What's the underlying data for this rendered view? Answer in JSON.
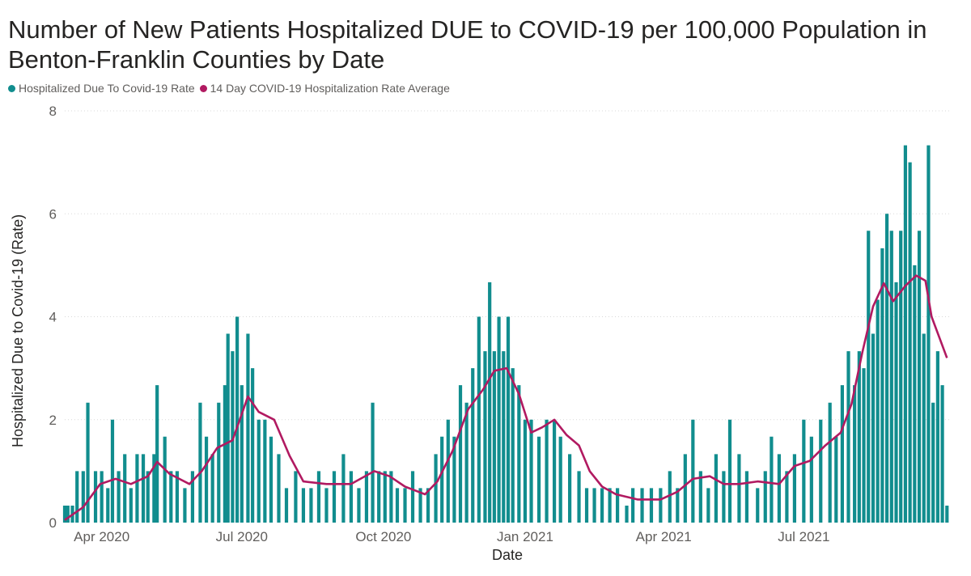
{
  "chart_data": {
    "type": "bar",
    "title": "Number of New Patients Hospitalized DUE to COVID-19 per 100,000 Population in Benton-Franklin Counties by Date",
    "xlabel": "Date",
    "ylabel": "Hospitalized Due to Covid-19 (Rate)",
    "ylim": [
      0,
      8
    ],
    "y_ticks": [
      "0",
      "2",
      "4",
      "6",
      "8"
    ],
    "x_ticks": [
      "Apr 2020",
      "Jul 2020",
      "Oct 2020",
      "Jan 2021",
      "Apr 2021",
      "Jul 2021"
    ],
    "x_tick_dates": [
      "2020-04-01",
      "2020-07-01",
      "2020-10-01",
      "2021-01-01",
      "2021-04-01",
      "2021-07-01"
    ],
    "x_range": [
      "2020-03-08",
      "2021-10-05"
    ],
    "grid": true,
    "legend_position": "top-left",
    "series": [
      {
        "name": "Hospitalized Due To Covid-19 Rate",
        "type": "bar",
        "color": "#118d8e",
        "points": [
          [
            "2020-03-08",
            0.33
          ],
          [
            "2020-03-10",
            0.33
          ],
          [
            "2020-03-13",
            0.33
          ],
          [
            "2020-03-16",
            1.0
          ],
          [
            "2020-03-20",
            1.0
          ],
          [
            "2020-03-23",
            2.33
          ],
          [
            "2020-03-28",
            1.0
          ],
          [
            "2020-04-01",
            1.0
          ],
          [
            "2020-04-05",
            0.67
          ],
          [
            "2020-04-08",
            2.0
          ],
          [
            "2020-04-12",
            1.0
          ],
          [
            "2020-04-16",
            1.33
          ],
          [
            "2020-04-20",
            0.67
          ],
          [
            "2020-04-24",
            1.33
          ],
          [
            "2020-04-28",
            1.33
          ],
          [
            "2020-05-01",
            1.0
          ],
          [
            "2020-05-05",
            1.33
          ],
          [
            "2020-05-07",
            2.67
          ],
          [
            "2020-05-12",
            1.67
          ],
          [
            "2020-05-16",
            1.0
          ],
          [
            "2020-05-20",
            1.0
          ],
          [
            "2020-05-25",
            0.67
          ],
          [
            "2020-05-30",
            1.0
          ],
          [
            "2020-06-04",
            2.33
          ],
          [
            "2020-06-08",
            1.67
          ],
          [
            "2020-06-12",
            1.33
          ],
          [
            "2020-06-16",
            2.33
          ],
          [
            "2020-06-20",
            2.67
          ],
          [
            "2020-06-22",
            3.67
          ],
          [
            "2020-06-25",
            3.33
          ],
          [
            "2020-06-28",
            4.0
          ],
          [
            "2020-07-01",
            2.67
          ],
          [
            "2020-07-05",
            3.67
          ],
          [
            "2020-07-08",
            3.0
          ],
          [
            "2020-07-12",
            2.0
          ],
          [
            "2020-07-16",
            2.0
          ],
          [
            "2020-07-20",
            1.67
          ],
          [
            "2020-07-25",
            1.33
          ],
          [
            "2020-07-30",
            0.67
          ],
          [
            "2020-08-05",
            1.0
          ],
          [
            "2020-08-10",
            0.67
          ],
          [
            "2020-08-15",
            0.67
          ],
          [
            "2020-08-20",
            1.0
          ],
          [
            "2020-08-25",
            0.67
          ],
          [
            "2020-08-30",
            1.0
          ],
          [
            "2020-09-05",
            1.33
          ],
          [
            "2020-09-10",
            1.0
          ],
          [
            "2020-09-15",
            0.67
          ],
          [
            "2020-09-20",
            1.0
          ],
          [
            "2020-09-24",
            2.33
          ],
          [
            "2020-09-28",
            1.0
          ],
          [
            "2020-10-02",
            1.0
          ],
          [
            "2020-10-06",
            1.0
          ],
          [
            "2020-10-10",
            0.67
          ],
          [
            "2020-10-15",
            0.67
          ],
          [
            "2020-10-20",
            1.0
          ],
          [
            "2020-10-25",
            0.67
          ],
          [
            "2020-10-30",
            0.67
          ],
          [
            "2020-11-04",
            1.33
          ],
          [
            "2020-11-08",
            1.67
          ],
          [
            "2020-11-12",
            2.0
          ],
          [
            "2020-11-16",
            1.67
          ],
          [
            "2020-11-20",
            2.67
          ],
          [
            "2020-11-24",
            2.33
          ],
          [
            "2020-11-28",
            3.0
          ],
          [
            "2020-12-02",
            4.0
          ],
          [
            "2020-12-06",
            3.33
          ],
          [
            "2020-12-09",
            4.67
          ],
          [
            "2020-12-12",
            3.33
          ],
          [
            "2020-12-15",
            4.0
          ],
          [
            "2020-12-18",
            3.33
          ],
          [
            "2020-12-21",
            4.0
          ],
          [
            "2020-12-24",
            3.0
          ],
          [
            "2020-12-28",
            2.67
          ],
          [
            "2021-01-01",
            2.0
          ],
          [
            "2021-01-05",
            2.0
          ],
          [
            "2021-01-10",
            1.67
          ],
          [
            "2021-01-15",
            2.0
          ],
          [
            "2021-01-20",
            2.0
          ],
          [
            "2021-01-24",
            1.67
          ],
          [
            "2021-01-30",
            1.33
          ],
          [
            "2021-02-05",
            1.0
          ],
          [
            "2021-02-10",
            0.67
          ],
          [
            "2021-02-15",
            0.67
          ],
          [
            "2021-02-20",
            0.67
          ],
          [
            "2021-02-25",
            0.67
          ],
          [
            "2021-03-02",
            0.67
          ],
          [
            "2021-03-08",
            0.33
          ],
          [
            "2021-03-12",
            0.67
          ],
          [
            "2021-03-18",
            0.67
          ],
          [
            "2021-03-24",
            0.67
          ],
          [
            "2021-03-30",
            0.67
          ],
          [
            "2021-04-05",
            1.0
          ],
          [
            "2021-04-10",
            0.67
          ],
          [
            "2021-04-15",
            1.33
          ],
          [
            "2021-04-20",
            2.0
          ],
          [
            "2021-04-25",
            1.0
          ],
          [
            "2021-04-30",
            0.67
          ],
          [
            "2021-05-05",
            1.33
          ],
          [
            "2021-05-10",
            1.0
          ],
          [
            "2021-05-14",
            2.0
          ],
          [
            "2021-05-20",
            1.33
          ],
          [
            "2021-05-25",
            1.0
          ],
          [
            "2021-06-01",
            0.67
          ],
          [
            "2021-06-06",
            1.0
          ],
          [
            "2021-06-10",
            1.67
          ],
          [
            "2021-06-15",
            1.33
          ],
          [
            "2021-06-20",
            1.0
          ],
          [
            "2021-06-25",
            1.33
          ],
          [
            "2021-07-01",
            2.0
          ],
          [
            "2021-07-06",
            1.67
          ],
          [
            "2021-07-12",
            2.0
          ],
          [
            "2021-07-18",
            2.33
          ],
          [
            "2021-07-22",
            1.67
          ],
          [
            "2021-07-26",
            2.67
          ],
          [
            "2021-07-30",
            3.33
          ],
          [
            "2021-08-03",
            2.67
          ],
          [
            "2021-08-06",
            3.33
          ],
          [
            "2021-08-09",
            3.0
          ],
          [
            "2021-08-12",
            5.67
          ],
          [
            "2021-08-15",
            3.67
          ],
          [
            "2021-08-18",
            4.33
          ],
          [
            "2021-08-21",
            5.33
          ],
          [
            "2021-08-24",
            6.0
          ],
          [
            "2021-08-27",
            5.67
          ],
          [
            "2021-08-30",
            4.67
          ],
          [
            "2021-09-02",
            5.67
          ],
          [
            "2021-09-05",
            7.33
          ],
          [
            "2021-09-08",
            7.0
          ],
          [
            "2021-09-11",
            5.0
          ],
          [
            "2021-09-14",
            5.67
          ],
          [
            "2021-09-17",
            3.67
          ],
          [
            "2021-09-20",
            7.33
          ],
          [
            "2021-09-23",
            2.33
          ],
          [
            "2021-09-26",
            3.33
          ],
          [
            "2021-09-29",
            2.67
          ],
          [
            "2021-10-02",
            0.33
          ]
        ]
      },
      {
        "name": "14 Day COVID-19 Hospitalization Rate Average",
        "type": "line",
        "color": "#b11a61",
        "points": [
          [
            "2020-03-08",
            0.05
          ],
          [
            "2020-03-20",
            0.3
          ],
          [
            "2020-03-31",
            0.75
          ],
          [
            "2020-04-10",
            0.85
          ],
          [
            "2020-04-20",
            0.75
          ],
          [
            "2020-05-01",
            0.9
          ],
          [
            "2020-05-07",
            1.18
          ],
          [
            "2020-05-15",
            0.95
          ],
          [
            "2020-05-28",
            0.75
          ],
          [
            "2020-06-05",
            1.0
          ],
          [
            "2020-06-15",
            1.45
          ],
          [
            "2020-06-25",
            1.6
          ],
          [
            "2020-07-05",
            2.45
          ],
          [
            "2020-07-12",
            2.15
          ],
          [
            "2020-07-22",
            2.0
          ],
          [
            "2020-08-01",
            1.3
          ],
          [
            "2020-08-10",
            0.8
          ],
          [
            "2020-08-25",
            0.75
          ],
          [
            "2020-09-10",
            0.75
          ],
          [
            "2020-09-25",
            1.0
          ],
          [
            "2020-10-05",
            0.9
          ],
          [
            "2020-10-15",
            0.7
          ],
          [
            "2020-10-28",
            0.55
          ],
          [
            "2020-11-05",
            0.8
          ],
          [
            "2020-11-15",
            1.4
          ],
          [
            "2020-11-25",
            2.2
          ],
          [
            "2020-12-05",
            2.6
          ],
          [
            "2020-12-12",
            2.95
          ],
          [
            "2020-12-20",
            3.0
          ],
          [
            "2020-12-28",
            2.5
          ],
          [
            "2021-01-05",
            1.75
          ],
          [
            "2021-01-12",
            1.85
          ],
          [
            "2021-01-20",
            2.0
          ],
          [
            "2021-01-28",
            1.7
          ],
          [
            "2021-02-05",
            1.5
          ],
          [
            "2021-02-12",
            1.0
          ],
          [
            "2021-02-20",
            0.7
          ],
          [
            "2021-03-01",
            0.55
          ],
          [
            "2021-03-15",
            0.45
          ],
          [
            "2021-03-30",
            0.45
          ],
          [
            "2021-04-10",
            0.6
          ],
          [
            "2021-04-20",
            0.85
          ],
          [
            "2021-05-01",
            0.9
          ],
          [
            "2021-05-10",
            0.75
          ],
          [
            "2021-05-20",
            0.75
          ],
          [
            "2021-06-01",
            0.8
          ],
          [
            "2021-06-15",
            0.75
          ],
          [
            "2021-06-25",
            1.1
          ],
          [
            "2021-07-05",
            1.2
          ],
          [
            "2021-07-15",
            1.5
          ],
          [
            "2021-07-25",
            1.75
          ],
          [
            "2021-08-01",
            2.3
          ],
          [
            "2021-08-08",
            3.3
          ],
          [
            "2021-08-15",
            4.2
          ],
          [
            "2021-08-22",
            4.65
          ],
          [
            "2021-08-28",
            4.3
          ],
          [
            "2021-09-05",
            4.6
          ],
          [
            "2021-09-12",
            4.8
          ],
          [
            "2021-09-18",
            4.7
          ],
          [
            "2021-09-22",
            4.0
          ],
          [
            "2021-09-27",
            3.6
          ],
          [
            "2021-10-02",
            3.2
          ]
        ]
      }
    ]
  }
}
